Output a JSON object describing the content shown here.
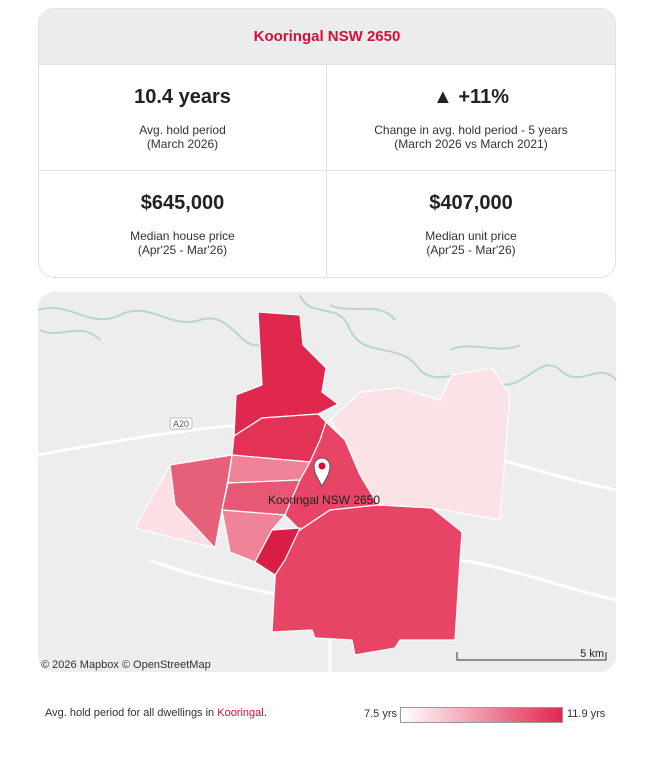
{
  "header": {
    "title": "Kooringal NSW 2650"
  },
  "stats": [
    {
      "value": "10.4 years",
      "label": "Avg. hold period",
      "sublabel": "(March 2026)"
    },
    {
      "value": "▲ +11%",
      "label": "Change in avg. hold period - 5 years",
      "sublabel": "(March 2026 vs March 2021)"
    },
    {
      "value": "$645,000",
      "label": "Median house price",
      "sublabel": "(Apr'25 - Mar'26)"
    },
    {
      "value": "$407,000",
      "label": "Median unit price",
      "sublabel": "(Apr'25 - Mar'26)"
    }
  ],
  "map": {
    "place_label": "Kooringal NSW 2650",
    "road_label": "A20",
    "attribution": "© 2026 Mapbox  © OpenStreetMap",
    "scale": "5 km"
  },
  "legend": {
    "caption": "Avg. hold period for all dwellings in ",
    "suburb": "Kooringal",
    "end": ".",
    "min_label": "7.5 yrs",
    "max_label": "11.9 yrs"
  }
}
